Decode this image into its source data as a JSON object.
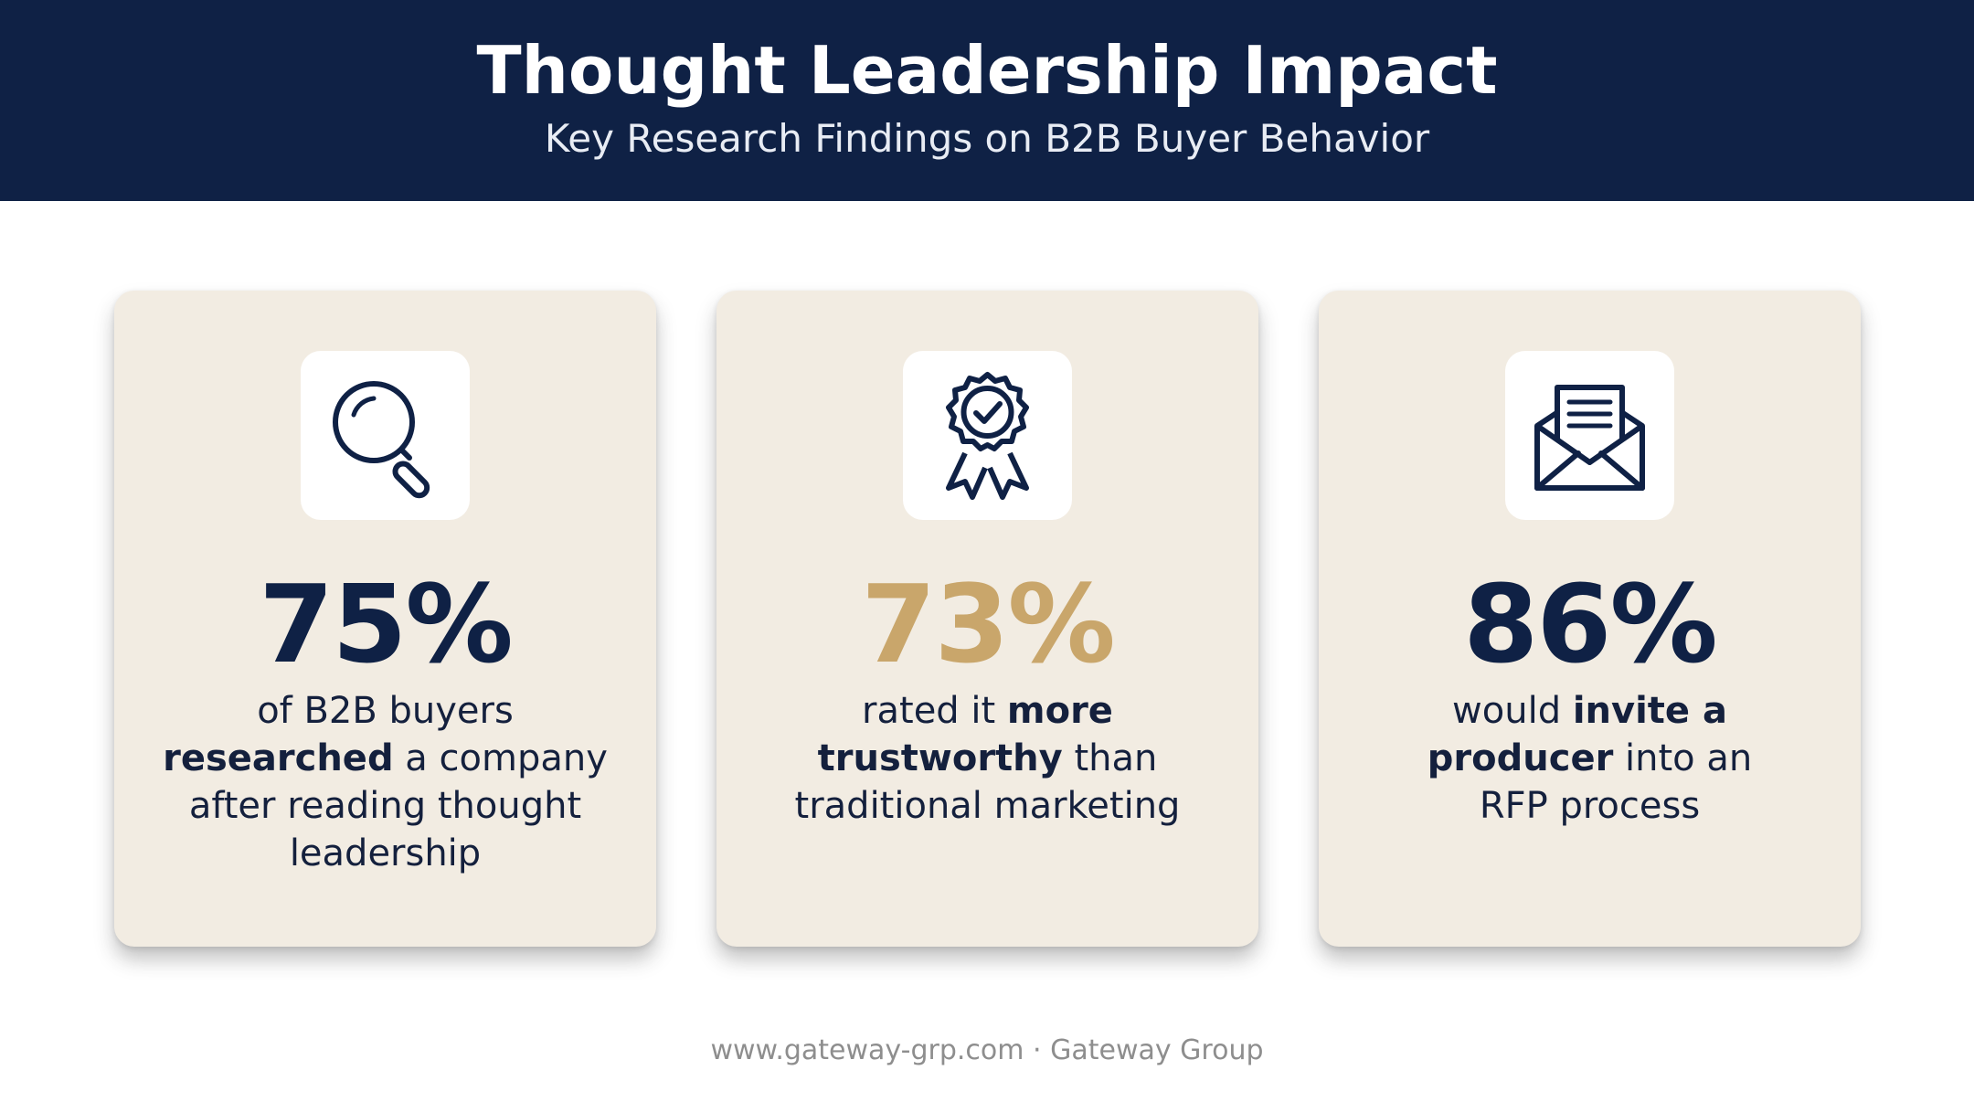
{
  "header": {
    "title": "Thought Leadership Impact",
    "subtitle": "Key Research Findings on B2B Buyer Behavior"
  },
  "colors": {
    "navy": "#0f2145",
    "gold": "#c9a66b",
    "card_bg": "#f2ece2"
  },
  "cards": [
    {
      "icon": "magnifying-glass-icon",
      "stat": "75%",
      "desc": [
        {
          "t": "of B2B buyers",
          "b": false
        },
        {
          "t": "researched",
          "b": true
        },
        {
          "t": " a company",
          "b": false
        },
        {
          "t": "after reading thought",
          "b": false
        },
        {
          "t": "leadership",
          "b": false
        }
      ]
    },
    {
      "icon": "award-badge-icon",
      "stat": "73%",
      "desc": [
        {
          "t": "rated it ",
          "b": false
        },
        {
          "t": "more",
          "b": true
        },
        {
          "t": "trustworthy",
          "b": true
        },
        {
          "t": " than",
          "b": false
        },
        {
          "t": "traditional marketing",
          "b": false
        }
      ]
    },
    {
      "icon": "open-envelope-icon",
      "stat": "86%",
      "desc": [
        {
          "t": "would ",
          "b": false
        },
        {
          "t": "invite a",
          "b": true
        },
        {
          "t": "producer",
          "b": true
        },
        {
          "t": " into an",
          "b": false
        },
        {
          "t": "RFP process",
          "b": false
        }
      ]
    }
  ],
  "footer": {
    "text": "www.gateway-grp.com · Gateway Group"
  }
}
